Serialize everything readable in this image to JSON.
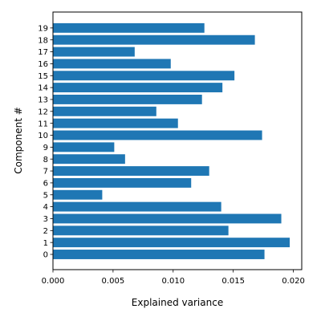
{
  "chart_data": {
    "type": "bar",
    "orientation": "horizontal",
    "xlabel": "Explained variance",
    "ylabel": "Component #",
    "xlim": [
      0.0,
      0.0207
    ],
    "x_ticks": [
      "0.000",
      "0.005",
      "0.010",
      "0.015",
      "0.020"
    ],
    "x_tick_values": [
      0.0,
      0.005,
      0.01,
      0.015,
      0.02
    ],
    "categories": [
      "0",
      "1",
      "2",
      "3",
      "4",
      "5",
      "6",
      "7",
      "8",
      "9",
      "10",
      "11",
      "12",
      "13",
      "14",
      "15",
      "16",
      "17",
      "18",
      "19"
    ],
    "values": [
      0.0176,
      0.0197,
      0.0146,
      0.019,
      0.014,
      0.0041,
      0.0115,
      0.013,
      0.006,
      0.0051,
      0.0174,
      0.0104,
      0.0086,
      0.0124,
      0.0141,
      0.0151,
      0.0098,
      0.0068,
      0.0168,
      0.0126
    ],
    "bar_color": "#1f77b4",
    "grid": false,
    "legend": "none"
  }
}
